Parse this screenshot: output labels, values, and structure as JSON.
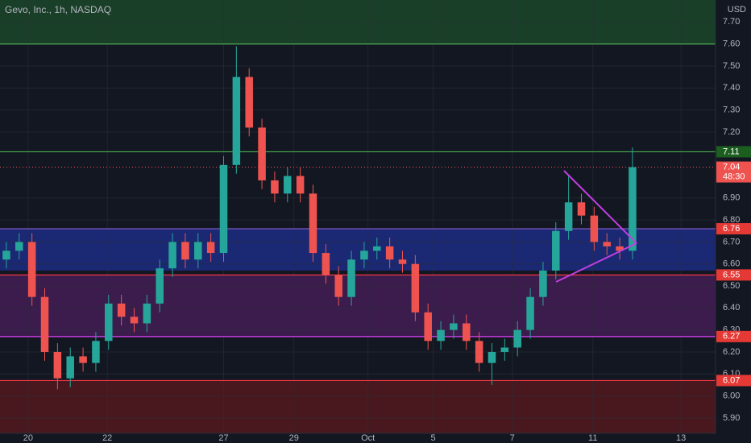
{
  "chart_data": {
    "type": "candlestick",
    "title": "Gevo, Inc., 1h, NASDAQ",
    "currency": "USD",
    "up_color": "#26a69a",
    "down_color": "#ef5350",
    "x": [
      0,
      1,
      2,
      3,
      4,
      5,
      6,
      7,
      8,
      9,
      10,
      11,
      12,
      13,
      14,
      15,
      16,
      17,
      18,
      19,
      20,
      21,
      22,
      23,
      24,
      25,
      26,
      27,
      28,
      29,
      30,
      31,
      32,
      33,
      34,
      35,
      36,
      37,
      38,
      39,
      40,
      41,
      42,
      43,
      44,
      45,
      46,
      47,
      48,
      49
    ],
    "open": [
      6.62,
      6.66,
      6.7,
      6.45,
      6.2,
      6.08,
      6.18,
      6.15,
      6.25,
      6.42,
      6.36,
      6.33,
      6.42,
      6.58,
      6.7,
      6.62,
      6.7,
      6.65,
      7.05,
      7.45,
      7.22,
      6.98,
      6.92,
      7.0,
      6.92,
      6.65,
      6.55,
      6.45,
      6.62,
      6.66,
      6.68,
      6.62,
      6.6,
      6.38,
      6.25,
      6.3,
      6.33,
      6.25,
      6.15,
      6.2,
      6.22,
      6.3,
      6.45,
      6.57,
      6.75,
      6.88,
      6.82,
      6.7,
      6.68,
      6.66
    ],
    "high": [
      6.7,
      6.74,
      6.74,
      6.49,
      6.24,
      6.22,
      6.22,
      6.29,
      6.46,
      6.46,
      6.4,
      6.46,
      6.62,
      6.74,
      6.74,
      6.74,
      6.74,
      7.09,
      7.59,
      7.49,
      7.26,
      7.02,
      7.04,
      7.04,
      6.96,
      6.69,
      6.59,
      6.66,
      6.7,
      6.72,
      6.72,
      6.66,
      6.64,
      6.42,
      6.34,
      6.37,
      6.37,
      6.29,
      6.24,
      6.26,
      6.34,
      6.49,
      6.61,
      6.79,
      7.0,
      6.92,
      6.86,
      6.74,
      6.72,
      7.13
    ],
    "low": [
      6.58,
      6.62,
      6.41,
      6.16,
      6.03,
      6.04,
      6.11,
      6.11,
      6.21,
      6.32,
      6.29,
      6.29,
      6.38,
      6.54,
      6.58,
      6.58,
      6.61,
      6.61,
      7.01,
      7.18,
      6.94,
      6.88,
      6.88,
      6.88,
      6.61,
      6.51,
      6.41,
      6.41,
      6.58,
      6.62,
      6.58,
      6.56,
      6.34,
      6.21,
      6.21,
      6.26,
      6.21,
      6.11,
      6.05,
      6.16,
      6.18,
      6.26,
      6.41,
      6.53,
      6.71,
      6.78,
      6.66,
      6.64,
      6.62,
      6.62
    ],
    "close": [
      6.66,
      6.7,
      6.45,
      6.2,
      6.08,
      6.18,
      6.15,
      6.25,
      6.42,
      6.36,
      6.33,
      6.42,
      6.58,
      6.7,
      6.62,
      6.7,
      6.65,
      7.05,
      7.45,
      7.22,
      6.98,
      6.92,
      7.0,
      6.92,
      6.65,
      6.55,
      6.45,
      6.62,
      6.66,
      6.68,
      6.62,
      6.6,
      6.38,
      6.25,
      6.3,
      6.33,
      6.25,
      6.15,
      6.2,
      6.22,
      6.3,
      6.45,
      6.57,
      6.75,
      6.88,
      6.82,
      6.7,
      6.68,
      6.66,
      7.04
    ],
    "xlim": [
      -0.5,
      55.5
    ],
    "xticks": [
      {
        "value": 1.7,
        "label": "20"
      },
      {
        "value": 7.9,
        "label": "22"
      },
      {
        "value": 17.0,
        "label": "27"
      },
      {
        "value": 22.5,
        "label": "29"
      },
      {
        "value": 28.3,
        "label": "Oct"
      },
      {
        "value": 33.4,
        "label": "5"
      },
      {
        "value": 39.6,
        "label": "7"
      },
      {
        "value": 45.9,
        "label": "11"
      },
      {
        "value": 52.8,
        "label": "13"
      }
    ],
    "ylim": [
      5.83,
      7.8
    ],
    "yticks": [
      {
        "value": 5.9,
        "label": "5.90"
      },
      {
        "value": 6.0,
        "label": "6.00"
      },
      {
        "value": 6.1,
        "label": "6.10"
      },
      {
        "value": 6.2,
        "label": "6.20"
      },
      {
        "value": 6.3,
        "label": "6.30"
      },
      {
        "value": 6.4,
        "label": "6.40"
      },
      {
        "value": 6.5,
        "label": "6.50"
      },
      {
        "value": 6.6,
        "label": "6.60"
      },
      {
        "value": 6.7,
        "label": "6.70"
      },
      {
        "value": 6.8,
        "label": "6.80"
      },
      {
        "value": 6.9,
        "label": "6.90"
      },
      {
        "value": 7.2,
        "label": "7.20"
      },
      {
        "value": 7.3,
        "label": "7.30"
      },
      {
        "value": 7.4,
        "label": "7.40"
      },
      {
        "value": 7.5,
        "label": "7.50"
      },
      {
        "value": 7.6,
        "label": "7.60"
      },
      {
        "value": 7.7,
        "label": "7.70"
      }
    ],
    "zones": [
      {
        "from": 7.6,
        "to": 7.8,
        "color": "#1e4d2b"
      },
      {
        "from": 6.57,
        "to": 6.76,
        "color": "#1f2f8f"
      },
      {
        "from": 6.27,
        "to": 6.55,
        "color": "#4a1f5c"
      },
      {
        "from": 5.83,
        "to": 6.07,
        "color": "#5c1a1e"
      }
    ],
    "levels": [
      {
        "value": 7.6,
        "color": "#4caf50"
      },
      {
        "value": 7.11,
        "color": "#4caf50",
        "label": "7.11",
        "label_color": "#1b5e20"
      },
      {
        "value": 6.76,
        "color": "#7e57c2",
        "label": "6.76",
        "label_color": "#e53935"
      },
      {
        "value": 6.55,
        "color": "#f23645",
        "label": "6.55",
        "label_color": "#e53935"
      },
      {
        "value": 6.27,
        "color": "#e040fb",
        "label": "6.27",
        "label_color": "#e53935"
      },
      {
        "value": 6.07,
        "color": "#f23645",
        "label": "6.07",
        "label_color": "#e53935"
      }
    ],
    "last_price": 7.04,
    "countdown": "48:30"
  }
}
